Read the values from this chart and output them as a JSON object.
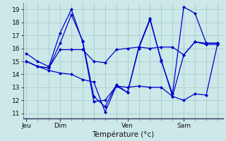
{
  "xlabel": "Température (°c)",
  "background_color": "#cce8e8",
  "grid_color": "#aacccc",
  "line_color": "#0000cc",
  "ylim": [
    10.6,
    19.5
  ],
  "yticks": [
    11,
    12,
    13,
    14,
    15,
    16,
    17,
    18,
    19
  ],
  "day_labels": [
    "Jeu",
    "Dim",
    "Ven",
    "Sam"
  ],
  "day_positions": [
    0,
    3,
    9,
    14
  ],
  "xlim": [
    -0.3,
    17.5
  ],
  "series": [
    [
      15.6,
      15.0,
      14.6,
      17.2,
      19.0,
      16.5,
      11.9,
      12.0,
      13.1,
      12.6,
      16.1,
      18.3,
      15.0,
      12.5,
      19.2,
      18.7,
      16.4,
      16.4
    ],
    [
      15.0,
      14.6,
      14.5,
      16.4,
      18.6,
      16.6,
      12.3,
      11.5,
      13.2,
      12.6,
      16.0,
      18.2,
      15.1,
      12.3,
      15.5,
      16.5,
      16.3,
      16.3
    ],
    [
      15.0,
      14.6,
      14.5,
      15.9,
      15.9,
      15.9,
      15.0,
      14.9,
      15.9,
      16.0,
      16.1,
      16.0,
      16.1,
      16.1,
      15.5,
      16.5,
      16.4,
      16.4
    ],
    [
      15.0,
      14.6,
      14.3,
      14.1,
      14.0,
      13.6,
      13.4,
      11.1,
      13.1,
      13.0,
      13.1,
      13.0,
      13.0,
      12.3,
      12.0,
      12.5,
      12.4,
      16.3
    ]
  ],
  "n_points": 18
}
